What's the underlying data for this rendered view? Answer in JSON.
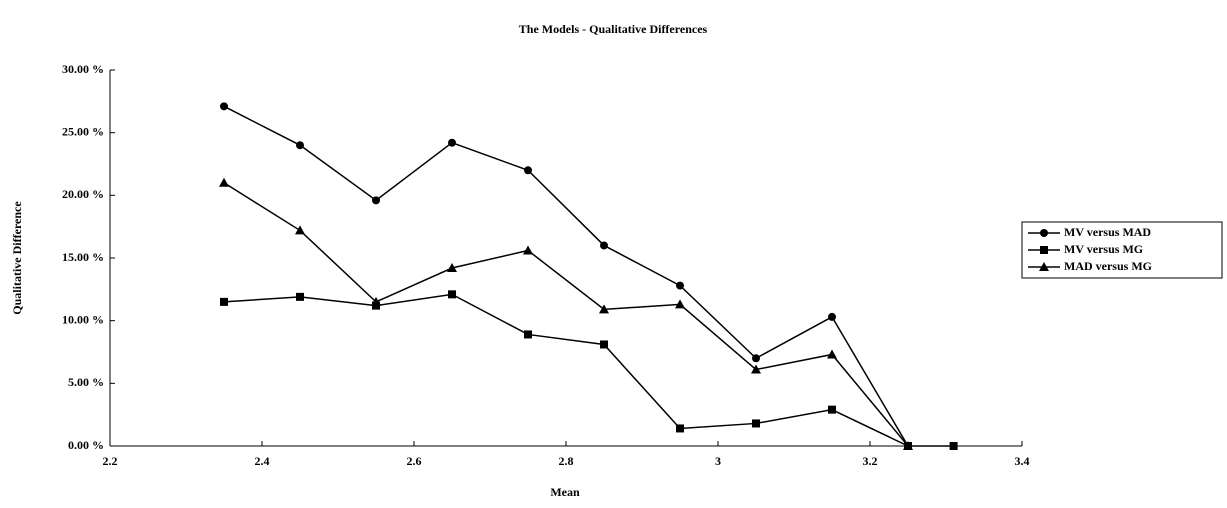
{
  "chart_data": {
    "type": "line",
    "title": "The Models - Qualitative Differences",
    "xlabel": "Mean",
    "ylabel": "Qualitative Difference",
    "x": [
      2.35,
      2.45,
      2.55,
      2.65,
      2.75,
      2.85,
      2.95,
      3.05,
      3.15,
      3.25,
      3.31
    ],
    "series": [
      {
        "name": "MV versus MAD",
        "color": "#000000",
        "marker": "circle",
        "values": [
          27.1,
          24.0,
          19.6,
          24.2,
          22.0,
          16.0,
          12.8,
          7.0,
          10.3,
          0,
          null
        ]
      },
      {
        "name": "MV versus MG",
        "color": "#000000",
        "marker": "square",
        "values": [
          11.5,
          11.9,
          11.2,
          12.1,
          8.9,
          8.1,
          1.4,
          1.8,
          2.9,
          0,
          0
        ]
      },
      {
        "name": "MAD versus MG",
        "color": "#000000",
        "marker": "triangle",
        "values": [
          21.0,
          17.2,
          11.5,
          14.2,
          15.6,
          10.9,
          11.3,
          6.1,
          7.3,
          0,
          null
        ]
      }
    ],
    "xlim": [
      2.2,
      3.4
    ],
    "xticks": [
      2.2,
      2.4,
      2.6,
      2.8,
      3,
      3.2,
      3.4
    ],
    "ylim": [
      0,
      30
    ],
    "yticks": [
      {
        "value": 0,
        "label": "0.00 %"
      },
      {
        "value": 5,
        "label": "5.00 %"
      },
      {
        "value": 10,
        "label": "10.00 %"
      },
      {
        "value": 15,
        "label": "15.00 %"
      },
      {
        "value": 20,
        "label": "20.00 %"
      },
      {
        "value": 25,
        "label": "25.00 %"
      },
      {
        "value": 30,
        "label": "30.00 %"
      }
    ],
    "grid": false,
    "legend": "right"
  }
}
